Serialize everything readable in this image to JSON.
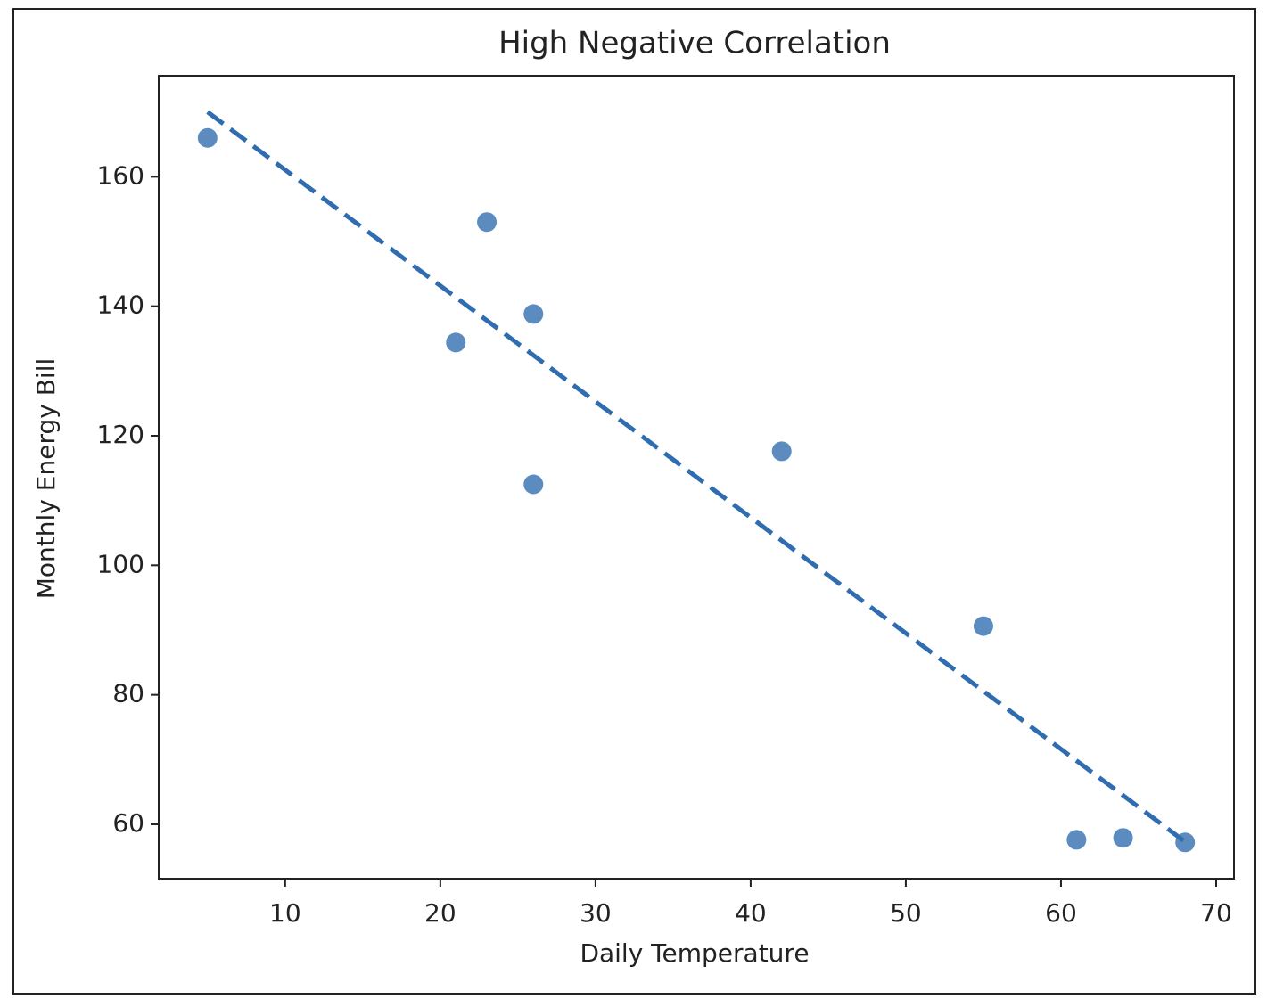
{
  "chart_data": {
    "type": "scatter",
    "title": "High Negative Correlation",
    "x_label": "Daily Temperature",
    "y_label": "Monthly Energy Bill",
    "series": [
      {
        "color": "#4a7fb8",
        "x": [
          5,
          23,
          26,
          21,
          26,
          42,
          55,
          61,
          64,
          68
        ],
        "y": [
          166,
          153,
          138.8,
          134.4,
          112.5,
          117.6,
          90.6,
          57.6,
          57.9,
          57.2
        ]
      }
    ],
    "trend_line": {
      "color": "#2f6db0",
      "style": "dashed",
      "x": [
        5,
        68
      ],
      "y": [
        170,
        57.3
      ]
    },
    "xlim": [
      1.85,
      71.15
    ],
    "ylim": [
      51.6,
      175.6
    ],
    "xticks": [
      10,
      20,
      30,
      40,
      50,
      60,
      70
    ],
    "yticks": [
      60,
      80,
      100,
      120,
      140,
      160
    ],
    "grid": false
  }
}
